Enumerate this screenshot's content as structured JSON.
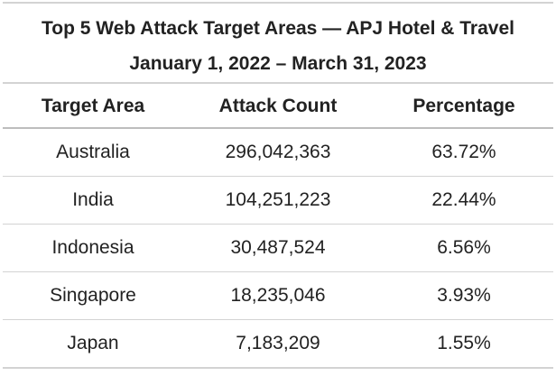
{
  "header": {
    "title": "Top 5 Web Attack Target Areas — APJ Hotel & Travel",
    "subtitle": "January 1, 2022 – March 31, 2023"
  },
  "table": {
    "columns": [
      "Target Area",
      "Attack Count",
      "Percentage"
    ],
    "rows": [
      [
        "Australia",
        "296,042,363",
        "63.72%"
      ],
      [
        "India",
        "104,251,223",
        "22.44%"
      ],
      [
        "Indonesia",
        "30,487,524",
        "6.56%"
      ],
      [
        "Singapore",
        "18,235,046",
        "3.93%"
      ],
      [
        "Japan",
        "7,183,209",
        "1.55%"
      ]
    ]
  }
}
